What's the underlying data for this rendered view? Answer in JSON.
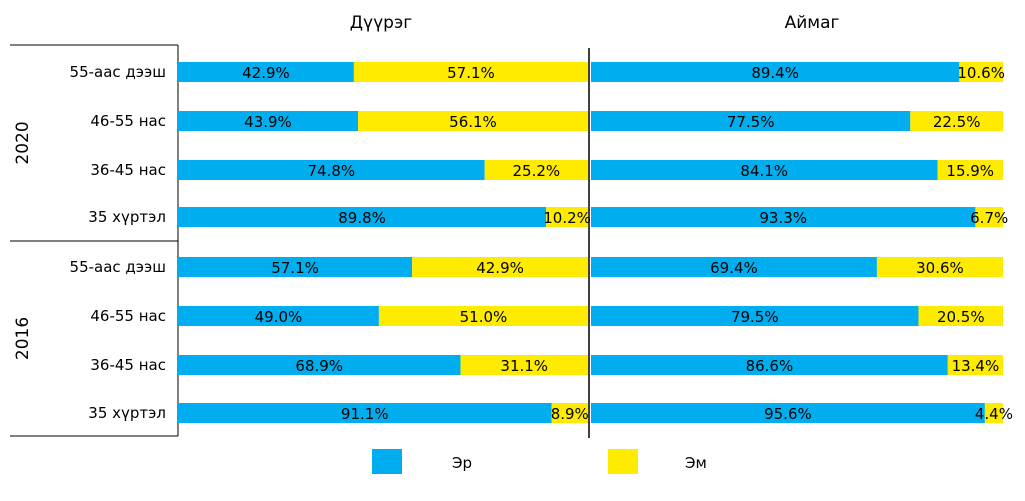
{
  "chart_data": {
    "type": "bar",
    "stacked": true,
    "percent_stacked": true,
    "panels": [
      "Дүүрэг",
      "Аймаг"
    ],
    "groups": [
      {
        "year": "2020",
        "categories": [
          "55-аас дээш",
          "46-55 нас",
          "36-45 нас",
          "35 хүртэл"
        ],
        "values": {
          "Дүүрэг": {
            "Эр": [
              42.9,
              43.9,
              74.8,
              89.8
            ],
            "Эм": [
              57.1,
              56.1,
              25.2,
              10.2
            ]
          },
          "Аймаг": {
            "Эр": [
              89.4,
              77.5,
              84.1,
              93.3
            ],
            "Эм": [
              10.6,
              22.5,
              15.9,
              6.7
            ]
          }
        }
      },
      {
        "year": "2016",
        "categories": [
          "55-аас дээш",
          "46-55 нас",
          "36-45 нас",
          "35 хүртэл"
        ],
        "values": {
          "Дүүрэг": {
            "Эр": [
              57.1,
              49.0,
              68.9,
              91.1
            ],
            "Эм": [
              42.9,
              51.0,
              31.1,
              8.9
            ]
          },
          "Аймаг": {
            "Эр": [
              69.4,
              79.5,
              86.6,
              95.6
            ],
            "Эм": [
              30.6,
              20.5,
              13.4,
              4.4
            ]
          }
        }
      }
    ],
    "series": [
      {
        "name": "Эр",
        "color": "#00AEEF"
      },
      {
        "name": "Эм",
        "color": "#FFEB00"
      }
    ],
    "ylim": [
      0,
      100
    ],
    "grid": false,
    "legend": "bottom"
  }
}
